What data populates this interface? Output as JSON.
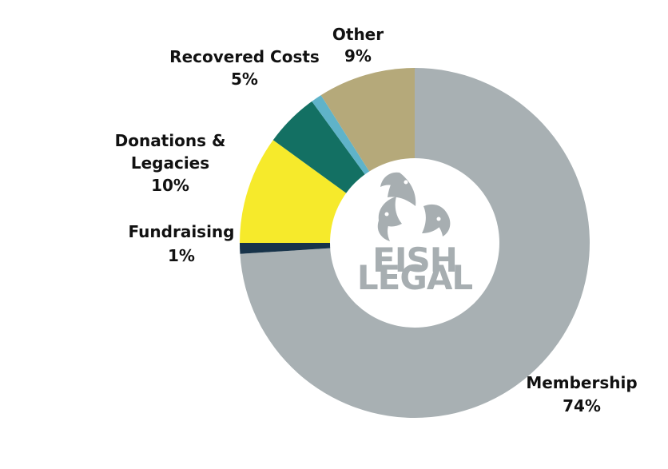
{
  "chart_data": {
    "type": "pie",
    "style": "donut",
    "title": "",
    "categories": [
      "Membership",
      "Fundraising",
      "Donations & Legacies",
      "Recovered Costs",
      "Other"
    ],
    "values": [
      74,
      1,
      10,
      5,
      9
    ],
    "slices": [
      {
        "name": "Membership",
        "value": 74,
        "percent_label": "74%",
        "color": "#a8b0b3"
      },
      {
        "name": "Fundraising",
        "value": 1,
        "percent_label": "1%",
        "color": "#17334a"
      },
      {
        "name": "Donations & Legacies",
        "value": 10,
        "percent_label": "10%",
        "color": "#f6ea2b"
      },
      {
        "name": "Recovered Costs",
        "value": 5,
        "percent_label": "5%",
        "color": "#137063"
      },
      {
        "name": "",
        "value": 1,
        "percent_label": "",
        "color": "#5fb3c9"
      },
      {
        "name": "Other",
        "value": 9,
        "percent_label": "9%",
        "color": "#b5a97a"
      }
    ],
    "labels": {
      "membership_name": "Membership",
      "membership_value": "74%",
      "fundraising_name": "Fundraising",
      "fundraising_value": "1%",
      "donations_name_1": "Donations &",
      "donations_name_2": "Legacies",
      "donations_value": "10%",
      "recovered_name": "Recovered Costs",
      "recovered_value": "5%",
      "other_name": "Other",
      "other_value": "9%"
    },
    "legend": "none"
  },
  "logo": {
    "line1": "FISH",
    "line2": "LEGAL",
    "color": "#a7aeb1",
    "icon": "three-fish-logo-icon"
  }
}
